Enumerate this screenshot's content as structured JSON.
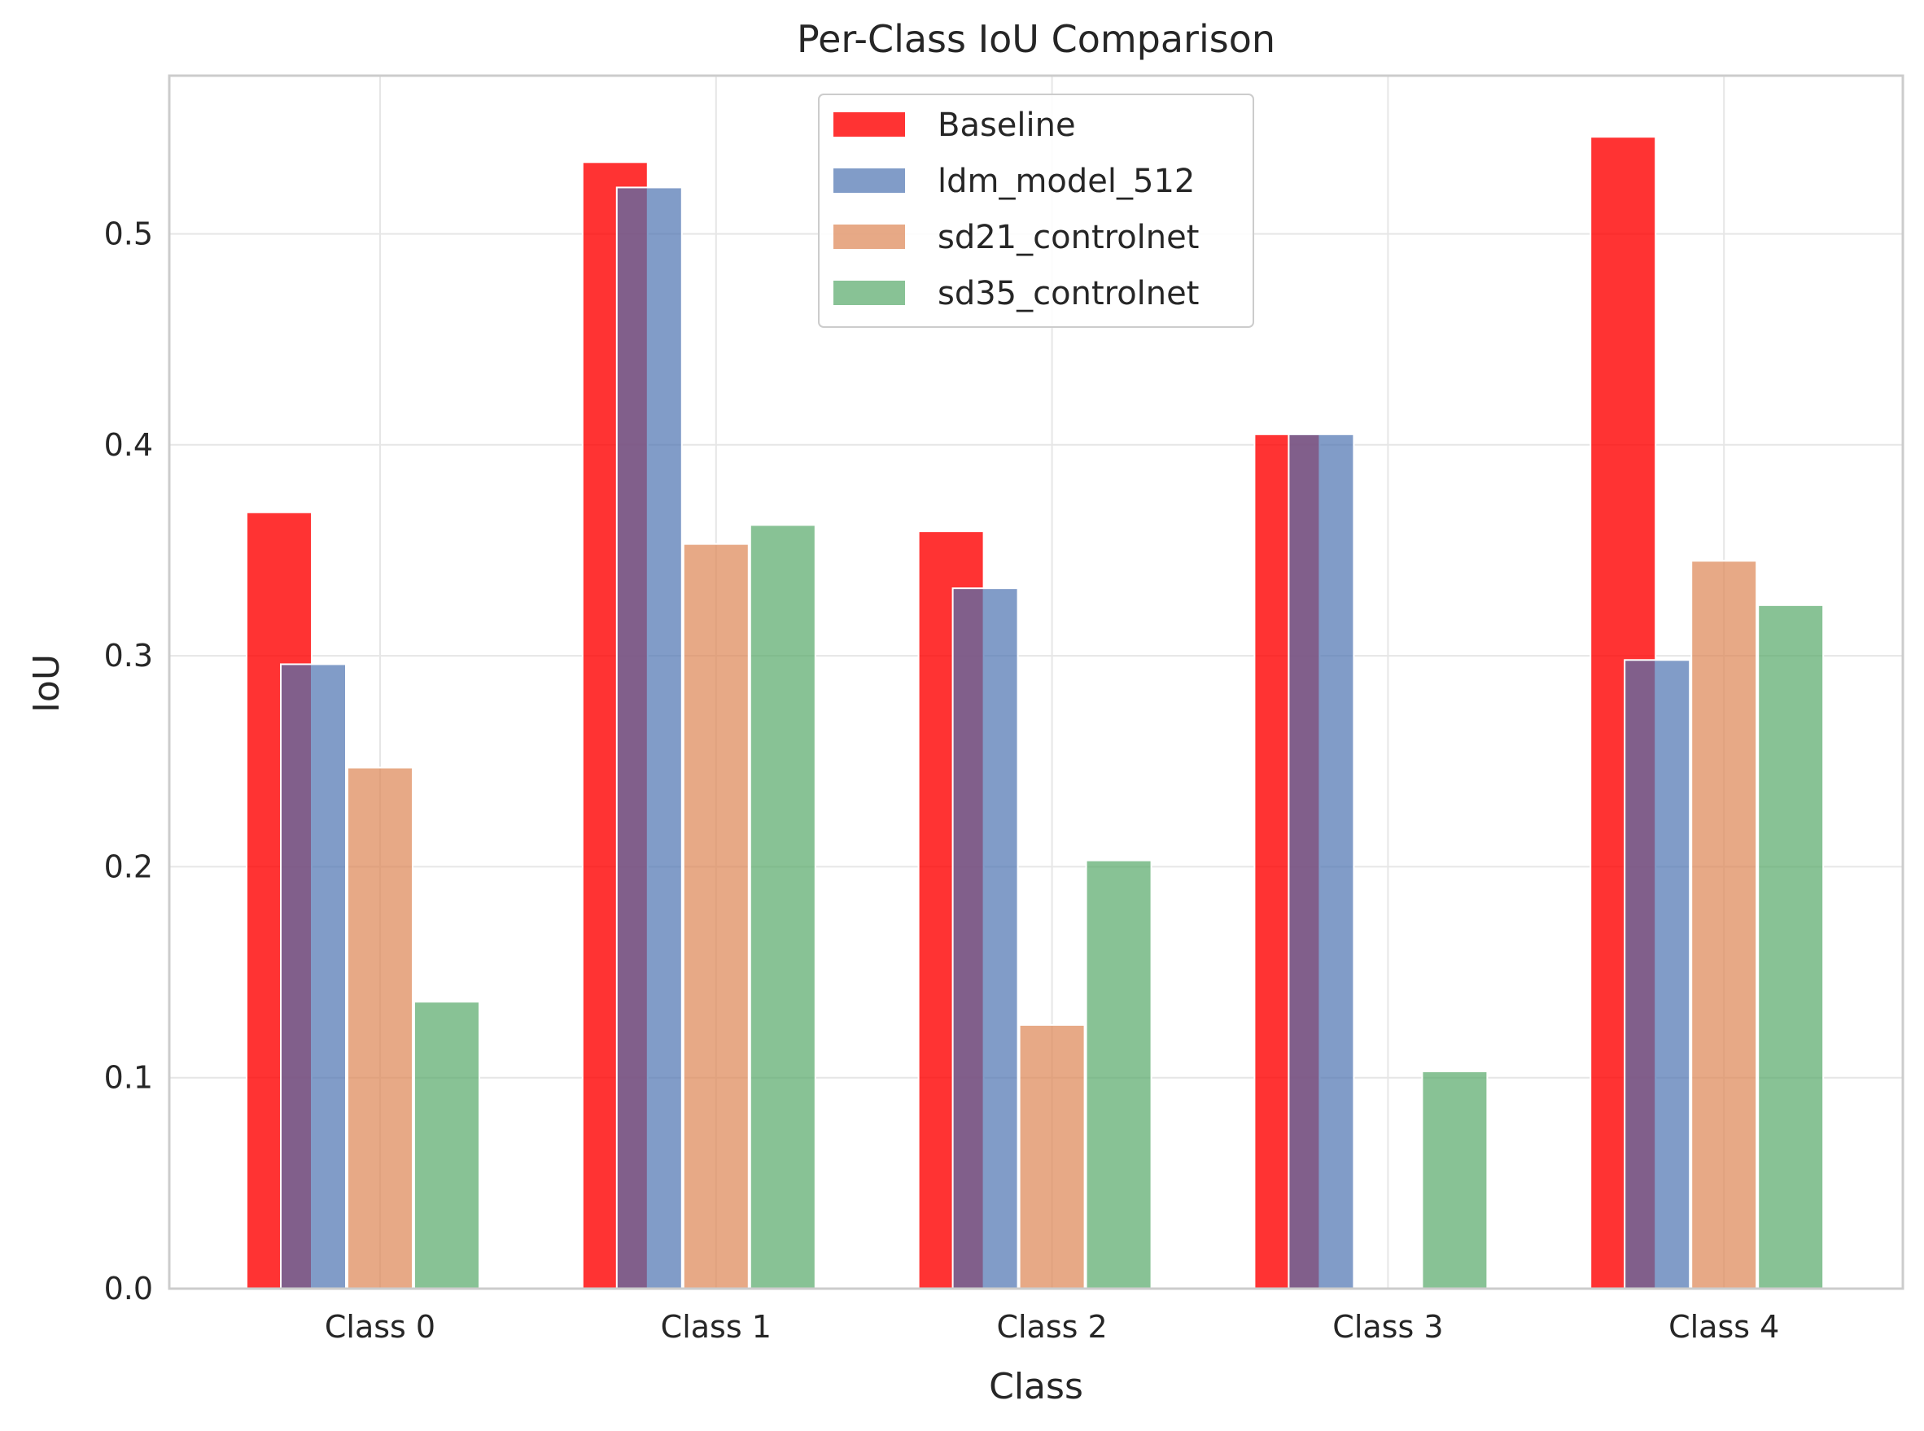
{
  "chart_data": {
    "type": "bar",
    "title": "Per-Class IoU Comparison",
    "xlabel": "Class",
    "ylabel": "IoU",
    "categories": [
      "Class 0",
      "Class 1",
      "Class 2",
      "Class 3",
      "Class 4"
    ],
    "ylim": [
      0,
      0.575
    ],
    "yticks": [
      "0.0",
      "0.1",
      "0.2",
      "0.3",
      "0.4",
      "0.5"
    ],
    "grid": true,
    "legend_position": "top-center",
    "series": [
      {
        "name": "Baseline",
        "color": "#ff0000",
        "opacity": 0.8,
        "values": [
          0.368,
          0.534,
          0.359,
          0.405,
          0.546
        ]
      },
      {
        "name": "ldm_model_512",
        "color": "#4c72b0",
        "opacity": 0.7,
        "values": [
          0.296,
          0.522,
          0.332,
          0.405,
          0.298
        ]
      },
      {
        "name": "sd21_controlnet",
        "color": "#dd8452",
        "opacity": 0.7,
        "values": [
          0.247,
          0.353,
          0.125,
          0.0,
          0.345
        ]
      },
      {
        "name": "sd35_controlnet",
        "color": "#55a868",
        "opacity": 0.7,
        "values": [
          0.136,
          0.362,
          0.203,
          0.103,
          0.324
        ]
      }
    ]
  }
}
